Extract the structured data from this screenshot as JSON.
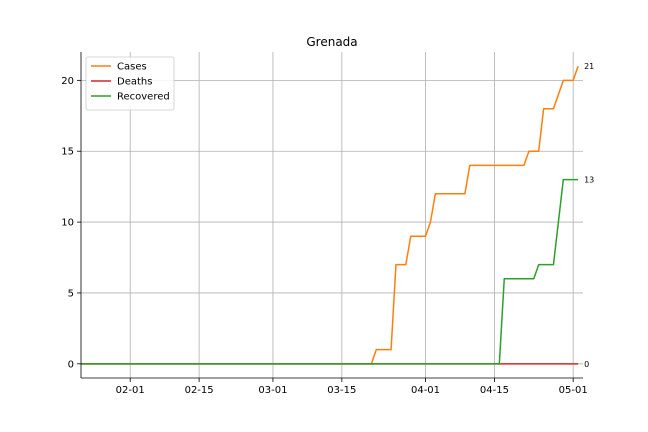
{
  "chart_data": {
    "type": "line",
    "title": "Grenada",
    "xlabel": "",
    "ylabel": "",
    "x_axis": {
      "type": "date",
      "min": "2020-01-22",
      "max": "2020-05-03",
      "ticks": [
        {
          "date": "2020-02-01",
          "label": "02-01"
        },
        {
          "date": "2020-02-15",
          "label": "02-15"
        },
        {
          "date": "2020-03-01",
          "label": "03-01"
        },
        {
          "date": "2020-03-15",
          "label": "03-15"
        },
        {
          "date": "2020-04-01",
          "label": "04-01"
        },
        {
          "date": "2020-04-15",
          "label": "04-15"
        },
        {
          "date": "2020-05-01",
          "label": "05-01"
        }
      ]
    },
    "y_axis": {
      "min": -1,
      "max": 22,
      "ticks": [
        0,
        5,
        10,
        15,
        20
      ]
    },
    "grid": true,
    "legend": "top-left",
    "series": [
      {
        "name": "Cases",
        "color": "#ff7f0e",
        "end_label": "21",
        "points": [
          [
            "2020-01-22",
            0
          ],
          [
            "2020-03-21",
            0
          ],
          [
            "2020-03-22",
            1
          ],
          [
            "2020-03-25",
            1
          ],
          [
            "2020-03-26",
            7
          ],
          [
            "2020-03-28",
            7
          ],
          [
            "2020-03-29",
            9
          ],
          [
            "2020-04-01",
            9
          ],
          [
            "2020-04-02",
            10
          ],
          [
            "2020-04-03",
            12
          ],
          [
            "2020-04-09",
            12
          ],
          [
            "2020-04-10",
            14
          ],
          [
            "2020-04-21",
            14
          ],
          [
            "2020-04-22",
            15
          ],
          [
            "2020-04-24",
            15
          ],
          [
            "2020-04-25",
            18
          ],
          [
            "2020-04-27",
            18
          ],
          [
            "2020-04-29",
            20
          ],
          [
            "2020-05-01",
            20
          ],
          [
            "2020-05-02",
            21
          ]
        ]
      },
      {
        "name": "Deaths",
        "color": "#d62728",
        "end_label": "0",
        "points": [
          [
            "2020-01-22",
            0
          ],
          [
            "2020-05-02",
            0
          ]
        ]
      },
      {
        "name": "Recovered",
        "color": "#2ca02c",
        "end_label": "13",
        "points": [
          [
            "2020-01-22",
            0
          ],
          [
            "2020-04-16",
            0
          ],
          [
            "2020-04-17",
            6
          ],
          [
            "2020-04-23",
            6
          ],
          [
            "2020-04-24",
            7
          ],
          [
            "2020-04-27",
            7
          ],
          [
            "2020-04-29",
            13
          ],
          [
            "2020-05-02",
            13
          ]
        ]
      }
    ]
  }
}
